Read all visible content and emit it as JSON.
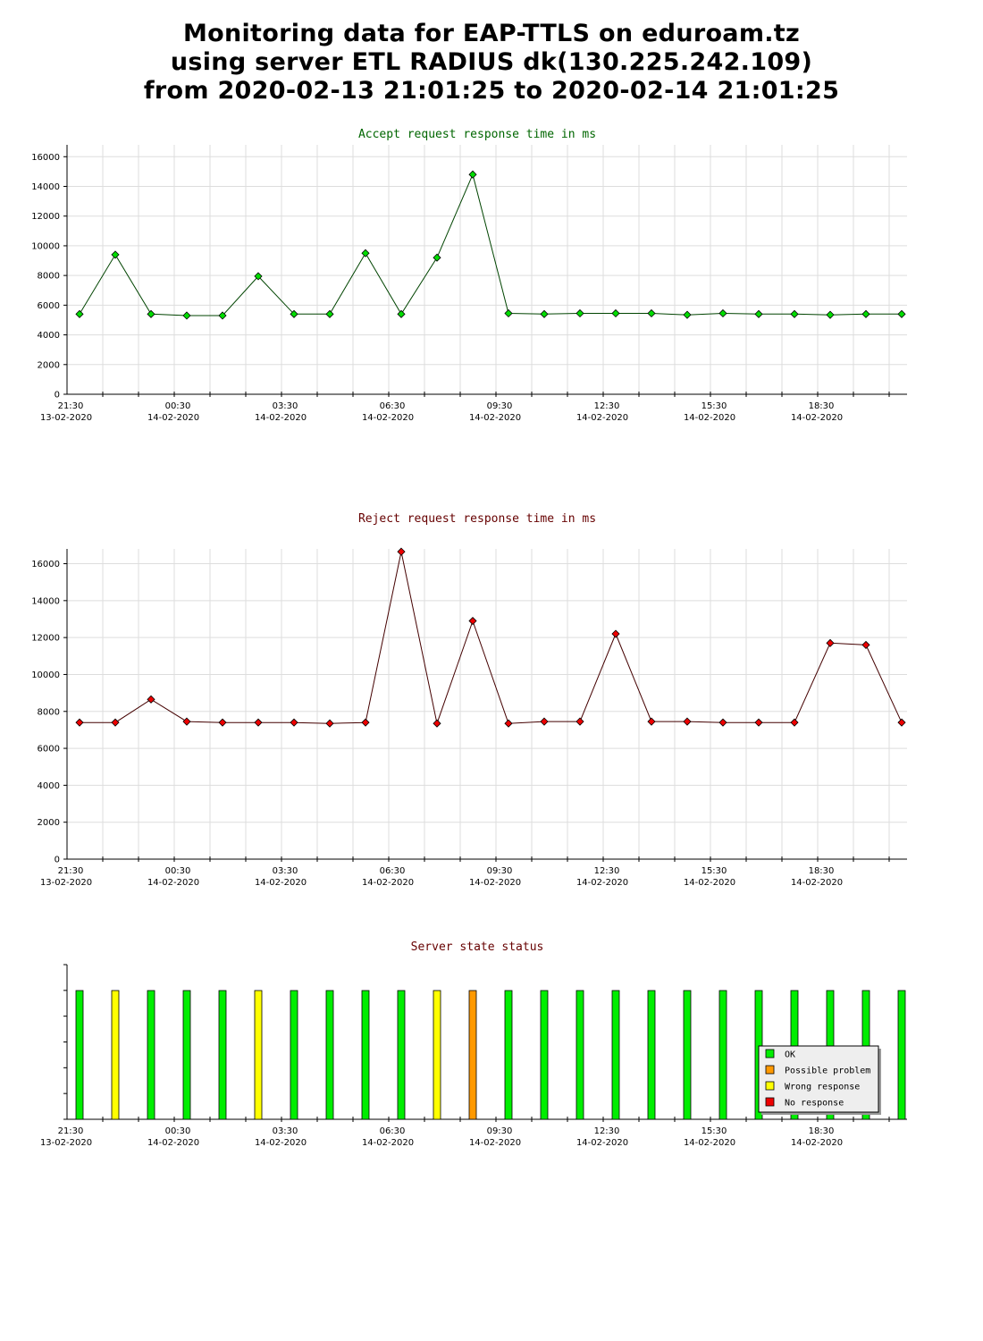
{
  "header": {
    "line1": "Monitoring data for EAP-TTLS on eduroam.tz",
    "line2": "using server ETL RADIUS dk(130.225.242.109)",
    "line3": "from 2020-02-13 21:01:25 to 2020-02-14 21:01:25"
  },
  "chart_data": [
    {
      "type": "line",
      "title": "Accept request response time in ms",
      "title_color": "#006600",
      "line_color": "#004400",
      "marker_color": "#00dd00",
      "ylim": [
        0,
        16800
      ],
      "yticks": [
        0,
        2000,
        4000,
        6000,
        8000,
        10000,
        12000,
        14000,
        16000
      ],
      "x_labels": [
        {
          "time": "21:30",
          "date": "13-02-2020"
        },
        {
          "time": "00:30",
          "date": "14-02-2020"
        },
        {
          "time": "03:30",
          "date": "14-02-2020"
        },
        {
          "time": "06:30",
          "date": "14-02-2020"
        },
        {
          "time": "09:30",
          "date": "14-02-2020"
        },
        {
          "time": "12:30",
          "date": "14-02-2020"
        },
        {
          "time": "15:30",
          "date": "14-02-2020"
        },
        {
          "time": "18:30",
          "date": "14-02-2020"
        }
      ],
      "values": [
        5400,
        9400,
        5400,
        5300,
        5300,
        7950,
        5400,
        5400,
        9500,
        5400,
        9200,
        14800,
        5450,
        5400,
        5450,
        5450,
        5450,
        5350,
        5450,
        5400,
        5400,
        5350,
        5400,
        5400
      ]
    },
    {
      "type": "line",
      "title": "Reject request response time in ms",
      "title_color": "#660000",
      "line_color": "#440000",
      "marker_color": "#ee0000",
      "ylim": [
        0,
        16800
      ],
      "yticks": [
        0,
        2000,
        4000,
        6000,
        8000,
        10000,
        12000,
        14000,
        16000
      ],
      "x_labels": [
        {
          "time": "21:30",
          "date": "13-02-2020"
        },
        {
          "time": "00:30",
          "date": "14-02-2020"
        },
        {
          "time": "03:30",
          "date": "14-02-2020"
        },
        {
          "time": "06:30",
          "date": "14-02-2020"
        },
        {
          "time": "09:30",
          "date": "14-02-2020"
        },
        {
          "time": "12:30",
          "date": "14-02-2020"
        },
        {
          "time": "15:30",
          "date": "14-02-2020"
        },
        {
          "time": "18:30",
          "date": "14-02-2020"
        }
      ],
      "values": [
        7400,
        7400,
        8650,
        7450,
        7400,
        7400,
        7400,
        7350,
        7400,
        16650,
        7350,
        12900,
        7350,
        7450,
        7450,
        12200,
        7450,
        7450,
        7400,
        7400,
        7400,
        11700,
        11600,
        7400
      ]
    },
    {
      "type": "bar",
      "title": "Server state status",
      "title_color": "#660000",
      "x_labels": [
        {
          "time": "21:30",
          "date": "13-02-2020"
        },
        {
          "time": "00:30",
          "date": "14-02-2020"
        },
        {
          "time": "03:30",
          "date": "14-02-2020"
        },
        {
          "time": "06:30",
          "date": "14-02-2020"
        },
        {
          "time": "09:30",
          "date": "14-02-2020"
        },
        {
          "time": "12:30",
          "date": "14-02-2020"
        },
        {
          "time": "15:30",
          "date": "14-02-2020"
        },
        {
          "time": "18:30",
          "date": "14-02-2020"
        }
      ],
      "states": [
        "ok",
        "wrong",
        "ok",
        "ok",
        "ok",
        "wrong",
        "ok",
        "ok",
        "ok",
        "ok",
        "wrong",
        "problem",
        "ok",
        "ok",
        "ok",
        "ok",
        "ok",
        "ok",
        "ok",
        "ok",
        "ok",
        "ok",
        "ok",
        "ok"
      ],
      "legend": [
        {
          "key": "ok",
          "label": "OK",
          "color": "#00ee00"
        },
        {
          "key": "problem",
          "label": "Possible problem",
          "color": "#ff9900"
        },
        {
          "key": "wrong",
          "label": "Wrong response",
          "color": "#ffff00"
        },
        {
          "key": "none",
          "label": "No response",
          "color": "#ee0000"
        }
      ]
    }
  ]
}
